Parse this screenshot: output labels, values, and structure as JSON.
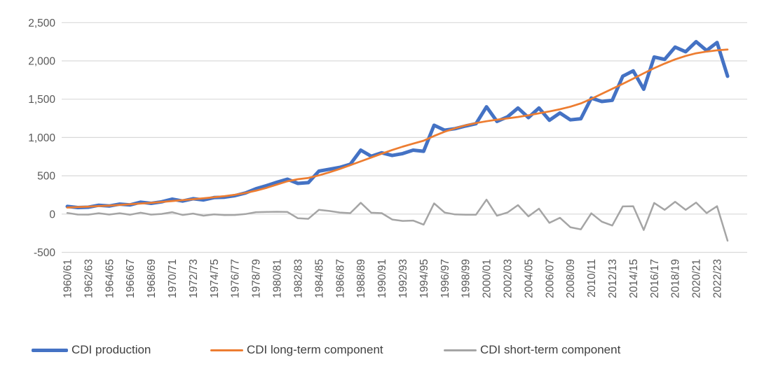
{
  "chart": {
    "background": "#FFFFFF",
    "grid_color": "#D9D9D9",
    "axis_label_color": "#595959",
    "legend_text_color": "#404040"
  },
  "chart_data": {
    "type": "line",
    "title": "",
    "xlabel": "",
    "ylabel": "",
    "grid": true,
    "legend_position": "bottom",
    "ylim": [
      -500,
      2500
    ],
    "x_tick_labels_every": 2,
    "y_ticks": [
      {
        "value": 2500,
        "label": "2,500"
      },
      {
        "value": 2000,
        "label": "2,000"
      },
      {
        "value": 1500,
        "label": "1,500"
      },
      {
        "value": 1000,
        "label": "1,000"
      },
      {
        "value": 500,
        "label": "500"
      },
      {
        "value": 0,
        "label": "0"
      },
      {
        "value": -500,
        "label": "-500"
      }
    ],
    "categories": [
      "1960/61",
      "1961/62",
      "1962/63",
      "1963/64",
      "1964/65",
      "1965/66",
      "1966/67",
      "1967/68",
      "1968/69",
      "1969/70",
      "1970/71",
      "1971/72",
      "1972/73",
      "1973/74",
      "1974/75",
      "1975/76",
      "1976/77",
      "1977/78",
      "1978/79",
      "1979/80",
      "1980/81",
      "1981/82",
      "1982/83",
      "1983/84",
      "1984/85",
      "1985/86",
      "1986/87",
      "1987/88",
      "1988/89",
      "1989/90",
      "1990/91",
      "1991/92",
      "1992/93",
      "1993/94",
      "1994/95",
      "1995/96",
      "1996/97",
      "1997/98",
      "1998/99",
      "1999/00",
      "2000/01",
      "2001/02",
      "2002/03",
      "2003/04",
      "2004/05",
      "2005/06",
      "2006/07",
      "2007/08",
      "2008/09",
      "2009/10",
      "2010/11",
      "2011/12",
      "2012/13",
      "2013/14",
      "2014/15",
      "2015/16",
      "2016/17",
      "2017/18",
      "2018/19",
      "2019/20",
      "2020/21",
      "2021/22",
      "2022/23",
      "2023/24"
    ],
    "series": [
      {
        "name": "CDI production",
        "color": "#4472C4",
        "stroke_width": 5,
        "values": [
          100,
          85,
          90,
          115,
          105,
          130,
          120,
          155,
          140,
          160,
          195,
          170,
          200,
          185,
          215,
          220,
          240,
          275,
          330,
          370,
          415,
          455,
          400,
          410,
          560,
          585,
          610,
          650,
          835,
          755,
          800,
          765,
          790,
          835,
          820,
          1160,
          1095,
          1115,
          1150,
          1180,
          1400,
          1210,
          1270,
          1385,
          1260,
          1385,
          1225,
          1320,
          1230,
          1245,
          1515,
          1470,
          1485,
          1800,
          1870,
          1630,
          2050,
          2020,
          2180,
          2120,
          2250,
          2135,
          2240,
          1800
        ]
      },
      {
        "name": "CDI long-term component",
        "color": "#ED7D31",
        "stroke_width": 2.75,
        "values": [
          85,
          91,
          97,
          104,
          111,
          119,
          128,
          137,
          147,
          158,
          170,
          182,
          194,
          206,
          219,
          234,
          252,
          275,
          305,
          342,
          385,
          428,
          455,
          472,
          505,
          545,
          590,
          638,
          688,
          738,
          788,
          836,
          880,
          920,
          958,
          1020,
          1075,
          1120,
          1158,
          1188,
          1212,
          1232,
          1250,
          1268,
          1290,
          1315,
          1340,
          1368,
          1402,
          1445,
          1505,
          1570,
          1635,
          1700,
          1768,
          1838,
          1905,
          1965,
          2020,
          2065,
          2100,
          2122,
          2138,
          2148
        ]
      },
      {
        "name": "CDI short-term component",
        "color": "#A5A5A5",
        "stroke_width": 2.5,
        "values": [
          15,
          -6,
          -7,
          11,
          -6,
          11,
          -8,
          18,
          -7,
          2,
          25,
          -12,
          6,
          -21,
          -4,
          -14,
          -12,
          0,
          25,
          28,
          30,
          27,
          -55,
          -62,
          55,
          40,
          20,
          12,
          147,
          17,
          12,
          -71,
          -90,
          -85,
          -138,
          140,
          20,
          -5,
          -8,
          -8,
          188,
          -22,
          20,
          117,
          -30,
          70,
          -115,
          -48,
          -172,
          -200,
          10,
          -100,
          -150,
          100,
          102,
          -208,
          145,
          55,
          160,
          55,
          150,
          13,
          102,
          -348
        ]
      }
    ]
  }
}
